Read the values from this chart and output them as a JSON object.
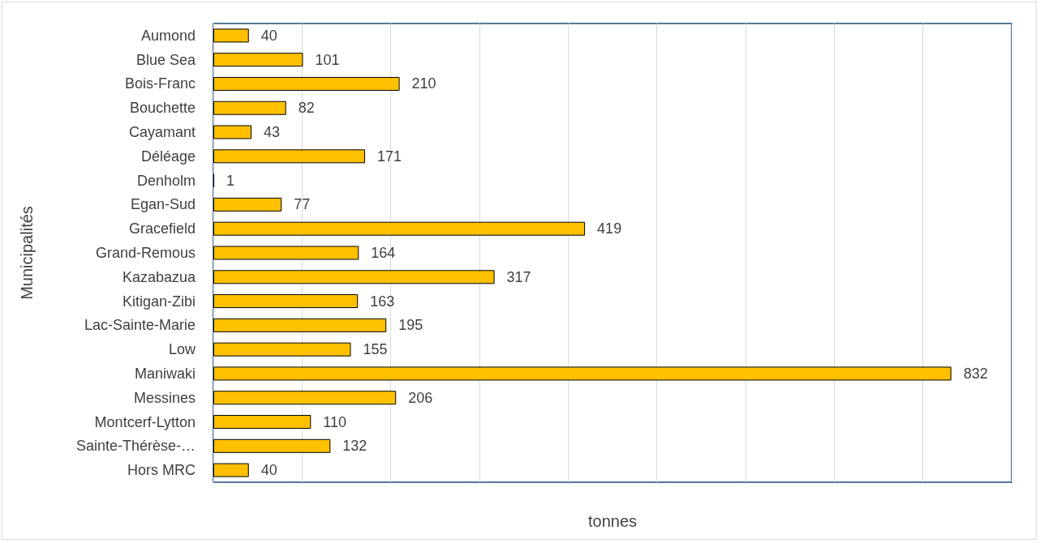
{
  "chart_data": {
    "type": "bar",
    "orientation": "horizontal",
    "xlabel": "tonnes",
    "ylabel": "Municipalités",
    "categories": [
      "Aumond",
      "Blue Sea",
      "Bois-Franc",
      "Bouchette",
      "Cayamant",
      "Déléage",
      "Denholm",
      "Egan-Sud",
      "Gracefield",
      "Grand-Remous",
      "Kazabazua",
      "Kitigan-Zibi",
      "Lac-Sainte-Marie",
      "Low",
      "Maniwaki",
      "Messines",
      "Montcerf-Lytton",
      "Sainte-Thérèse-…",
      "Hors MRC"
    ],
    "values": [
      40,
      101,
      210,
      82,
      43,
      171,
      1,
      77,
      419,
      164,
      317,
      163,
      195,
      155,
      832,
      206,
      110,
      132,
      40
    ],
    "color": "#ffc000",
    "data_labels": true,
    "xlim": [
      0,
      900
    ],
    "xticks": [
      {
        "value": 0,
        "label": null
      },
      {
        "value": 100,
        "label": null
      },
      {
        "value": 200,
        "label": null
      },
      {
        "value": 300,
        "label": null
      },
      {
        "value": 400,
        "label": null
      },
      {
        "value": 500,
        "label": null
      },
      {
        "value": 600,
        "label": null
      },
      {
        "value": 700,
        "label": null
      },
      {
        "value": 800,
        "label": null
      },
      {
        "value": 900,
        "label": null
      }
    ],
    "grid": "x",
    "tick_labels": "y"
  }
}
